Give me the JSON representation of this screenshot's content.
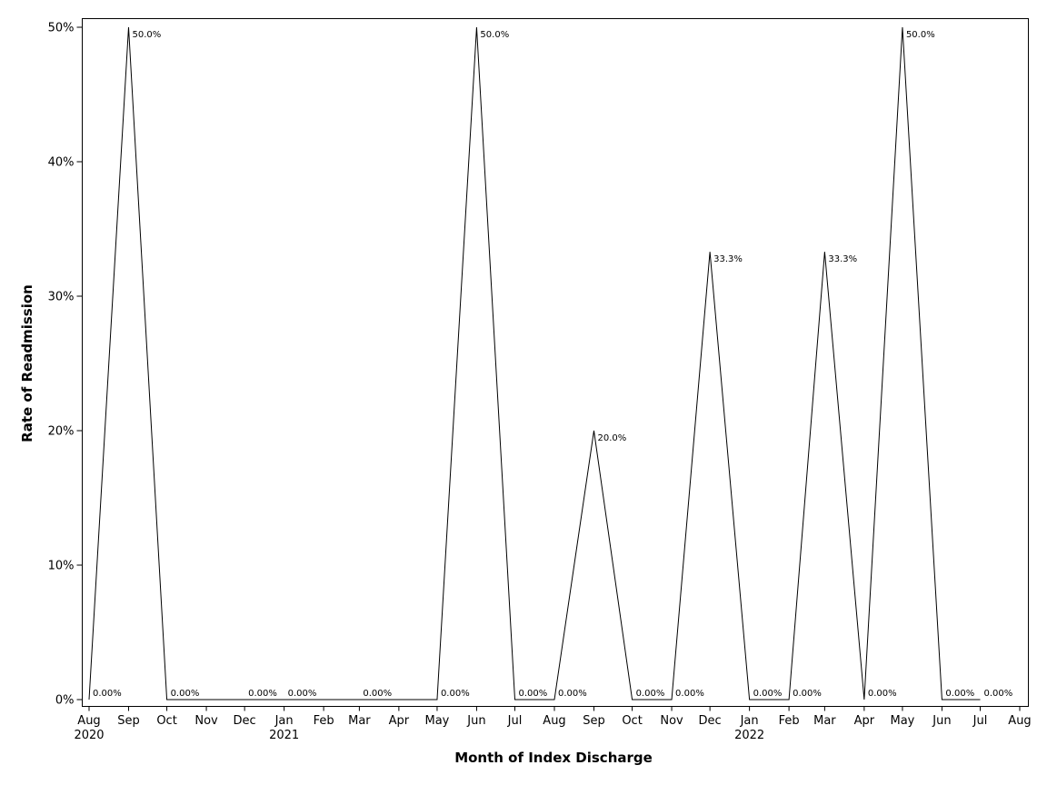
{
  "chart_data": {
    "type": "line",
    "title": "",
    "xlabel": "Month of Index Discharge",
    "ylabel": "Rate of Readmission",
    "ylim": [
      0,
      0.5
    ],
    "yticks": [
      {
        "value": 0,
        "label": "0%"
      },
      {
        "value": 0.1,
        "label": "10%"
      },
      {
        "value": 0.2,
        "label": "20%"
      },
      {
        "value": 0.3,
        "label": "30%"
      },
      {
        "value": 0.4,
        "label": "40%"
      },
      {
        "value": 0.5,
        "label": "50%"
      }
    ],
    "xlim": [
      "2020-08-01",
      "2022-08-01"
    ],
    "xticks": [
      {
        "date": "2020-08-01",
        "label": "Aug",
        "year": "2020"
      },
      {
        "date": "2020-09-01",
        "label": "Sep",
        "year": ""
      },
      {
        "date": "2020-10-01",
        "label": "Oct",
        "year": ""
      },
      {
        "date": "2020-11-01",
        "label": "Nov",
        "year": ""
      },
      {
        "date": "2020-12-01",
        "label": "Dec",
        "year": ""
      },
      {
        "date": "2021-01-01",
        "label": "Jan",
        "year": "2021"
      },
      {
        "date": "2021-02-01",
        "label": "Feb",
        "year": ""
      },
      {
        "date": "2021-03-01",
        "label": "Mar",
        "year": ""
      },
      {
        "date": "2021-04-01",
        "label": "Apr",
        "year": ""
      },
      {
        "date": "2021-05-01",
        "label": "May",
        "year": ""
      },
      {
        "date": "2021-06-01",
        "label": "Jun",
        "year": ""
      },
      {
        "date": "2021-07-01",
        "label": "Jul",
        "year": ""
      },
      {
        "date": "2021-08-01",
        "label": "Aug",
        "year": ""
      },
      {
        "date": "2021-09-01",
        "label": "Sep",
        "year": ""
      },
      {
        "date": "2021-10-01",
        "label": "Oct",
        "year": ""
      },
      {
        "date": "2021-11-01",
        "label": "Nov",
        "year": ""
      },
      {
        "date": "2021-12-01",
        "label": "Dec",
        "year": ""
      },
      {
        "date": "2022-01-01",
        "label": "Jan",
        "year": "2022"
      },
      {
        "date": "2022-02-01",
        "label": "Feb",
        "year": ""
      },
      {
        "date": "2022-03-01",
        "label": "Mar",
        "year": ""
      },
      {
        "date": "2022-04-01",
        "label": "Apr",
        "year": ""
      },
      {
        "date": "2022-05-01",
        "label": "May",
        "year": ""
      },
      {
        "date": "2022-06-01",
        "label": "Jun",
        "year": ""
      },
      {
        "date": "2022-07-01",
        "label": "Jul",
        "year": ""
      },
      {
        "date": "2022-08-01",
        "label": "Aug",
        "year": ""
      }
    ],
    "grid": false,
    "line_color": "#000000",
    "points": [
      {
        "x": "2020-08-01",
        "y": 0,
        "label": "0.00%"
      },
      {
        "x": "2020-09-01",
        "y": 0.5,
        "label": "50.0%"
      },
      {
        "x": "2020-10-01",
        "y": 0,
        "label": "0.00%"
      },
      {
        "x": "2020-12-01",
        "y": 0,
        "label": "0.00%"
      },
      {
        "x": "2021-01-01",
        "y": 0,
        "label": "0.00%"
      },
      {
        "x": "2021-03-01",
        "y": 0,
        "label": "0.00%"
      },
      {
        "x": "2021-05-01",
        "y": 0,
        "label": "0.00%"
      },
      {
        "x": "2021-06-01",
        "y": 0.5,
        "label": "50.0%"
      },
      {
        "x": "2021-07-01",
        "y": 0,
        "label": "0.00%"
      },
      {
        "x": "2021-08-01",
        "y": 0,
        "label": "0.00%"
      },
      {
        "x": "2021-09-01",
        "y": 0.2,
        "label": "20.0%"
      },
      {
        "x": "2021-10-01",
        "y": 0,
        "label": "0.00%"
      },
      {
        "x": "2021-11-01",
        "y": 0,
        "label": "0.00%"
      },
      {
        "x": "2021-12-01",
        "y": 0.333,
        "label": "33.3%"
      },
      {
        "x": "2022-01-01",
        "y": 0,
        "label": "0.00%"
      },
      {
        "x": "2022-02-01",
        "y": 0,
        "label": "0.00%"
      },
      {
        "x": "2022-03-01",
        "y": 0.333,
        "label": "33.3%"
      },
      {
        "x": "2022-04-01",
        "y": 0,
        "label": "0.00%"
      },
      {
        "x": "2022-05-01",
        "y": 0.5,
        "label": "50.0%"
      },
      {
        "x": "2022-06-01",
        "y": 0,
        "label": "0.00%"
      },
      {
        "x": "2022-07-01",
        "y": 0,
        "label": "0.00%"
      }
    ]
  }
}
